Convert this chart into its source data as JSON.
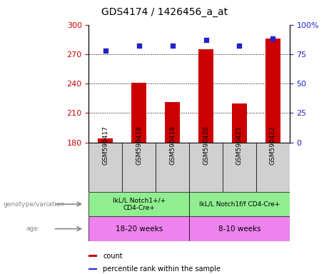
{
  "title": "GDS4174 / 1426456_a_at",
  "samples": [
    "GSM590417",
    "GSM590418",
    "GSM590419",
    "GSM590420",
    "GSM590421",
    "GSM590422"
  ],
  "bar_values": [
    184,
    241,
    221,
    275,
    220,
    286
  ],
  "percentile_values": [
    78,
    82,
    82,
    87,
    82,
    88
  ],
  "ymin": 180,
  "ymax": 300,
  "yticks": [
    180,
    210,
    240,
    270,
    300
  ],
  "y2min": 0,
  "y2max": 100,
  "y2ticks": [
    0,
    25,
    50,
    75,
    100
  ],
  "y2tick_labels": [
    "0",
    "25",
    "50",
    "75",
    "100%"
  ],
  "bar_color": "#cc0000",
  "dot_color": "#2222cc",
  "group1_label": "IkL/L Notch1+/+\nCD4-Cre+",
  "group2_label": "IkL/L Notch1f/f CD4-Cre+",
  "age1_label": "18-20 weeks",
  "age2_label": "8-10 weeks",
  "group1_color": "#90ee90",
  "age_color": "#ee82ee",
  "sample_bg_color": "#d0d0d0",
  "legend_count": "count",
  "legend_pct": "percentile rank within the sample",
  "tick_label_color_left": "#cc0000",
  "tick_label_color_right": "#2222cc",
  "group1_indices": [
    0,
    1,
    2
  ],
  "group2_indices": [
    3,
    4,
    5
  ]
}
